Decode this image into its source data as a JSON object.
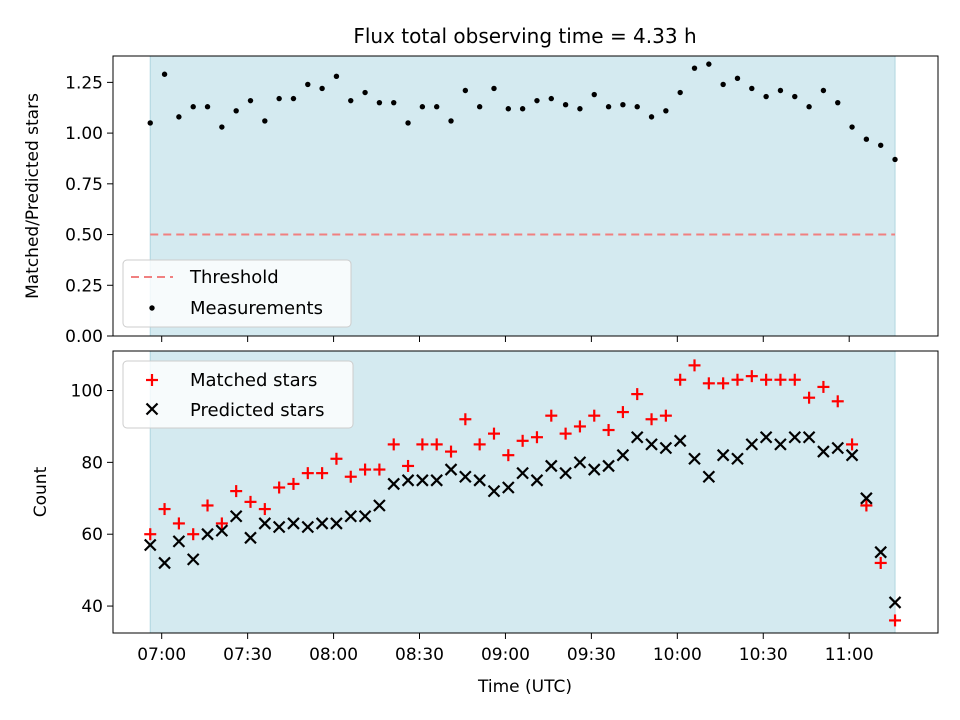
{
  "figure": {
    "title": "Flux total observing time = 4.33 h",
    "xlabel": "Time (UTC)",
    "x_tick_labels": [
      "07:00",
      "07:30",
      "08:00",
      "08:30",
      "09:00",
      "09:30",
      "10:00",
      "10:30",
      "11:00"
    ]
  },
  "colors": {
    "observing_span": "#d4eaf0",
    "threshold": "#f08080",
    "matched": "#ff0000",
    "predicted": "#000000",
    "measurements": "#000000"
  },
  "chart_data": [
    {
      "type": "scatter",
      "panel": "top",
      "ylabel": "Matched/Predicted stars",
      "ylim": [
        0.0,
        1.38
      ],
      "yticks": [
        0.0,
        0.25,
        0.5,
        0.75,
        1.0,
        1.25
      ],
      "x_unit": "time (UTC)",
      "xlim": [
        "06:43",
        "11:31"
      ],
      "observing_span": [
        "06:56",
        "11:16"
      ],
      "threshold": {
        "name": "Threshold",
        "value": 0.5,
        "style": "dashed",
        "x": [
          "06:56",
          "11:16"
        ]
      },
      "legend": {
        "location": "lower-left",
        "entries": [
          "Threshold",
          "Measurements"
        ]
      },
      "series": [
        {
          "name": "Measurements",
          "marker": "dot",
          "x": [
            "06:56",
            "07:01",
            "07:06",
            "07:11",
            "07:16",
            "07:21",
            "07:26",
            "07:31",
            "07:36",
            "07:41",
            "07:46",
            "07:51",
            "07:56",
            "08:01",
            "08:06",
            "08:11",
            "08:16",
            "08:21",
            "08:26",
            "08:31",
            "08:36",
            "08:41",
            "08:46",
            "08:51",
            "08:56",
            "09:01",
            "09:06",
            "09:11",
            "09:16",
            "09:21",
            "09:26",
            "09:31",
            "09:36",
            "09:41",
            "09:46",
            "09:51",
            "09:56",
            "10:01",
            "10:06",
            "10:11",
            "10:16",
            "10:21",
            "10:26",
            "10:31",
            "10:36",
            "10:41",
            "10:46",
            "10:51",
            "10:56",
            "11:01",
            "11:06",
            "11:11",
            "11:16"
          ],
          "y": [
            1.05,
            1.29,
            1.08,
            1.13,
            1.13,
            1.03,
            1.11,
            1.16,
            1.06,
            1.17,
            1.17,
            1.24,
            1.22,
            1.28,
            1.16,
            1.2,
            1.15,
            1.15,
            1.05,
            1.13,
            1.13,
            1.06,
            1.21,
            1.13,
            1.22,
            1.12,
            1.12,
            1.16,
            1.17,
            1.14,
            1.12,
            1.19,
            1.13,
            1.14,
            1.13,
            1.08,
            1.11,
            1.2,
            1.32,
            1.34,
            1.24,
            1.27,
            1.22,
            1.18,
            1.21,
            1.18,
            1.13,
            1.21,
            1.15,
            1.03,
            0.97,
            0.94,
            0.87
          ]
        }
      ]
    },
    {
      "type": "scatter",
      "panel": "bottom",
      "ylabel": "Count",
      "ylim": [
        32.5,
        111
      ],
      "yticks": [
        40,
        60,
        80,
        100
      ],
      "x_unit": "time (UTC)",
      "xlim": [
        "06:43",
        "11:31"
      ],
      "observing_span": [
        "06:56",
        "11:16"
      ],
      "legend": {
        "location": "top-left",
        "entries": [
          "Matched stars",
          "Predicted stars"
        ]
      },
      "x": [
        "06:56",
        "07:01",
        "07:06",
        "07:11",
        "07:16",
        "07:21",
        "07:26",
        "07:31",
        "07:36",
        "07:41",
        "07:46",
        "07:51",
        "07:56",
        "08:01",
        "08:06",
        "08:11",
        "08:16",
        "08:21",
        "08:26",
        "08:31",
        "08:36",
        "08:41",
        "08:46",
        "08:51",
        "08:56",
        "09:01",
        "09:06",
        "09:11",
        "09:16",
        "09:21",
        "09:26",
        "09:31",
        "09:36",
        "09:41",
        "09:46",
        "09:51",
        "09:56",
        "10:01",
        "10:06",
        "10:11",
        "10:16",
        "10:21",
        "10:26",
        "10:31",
        "10:36",
        "10:41",
        "10:46",
        "10:51",
        "10:56",
        "11:01",
        "11:06",
        "11:11",
        "11:16"
      ],
      "series": [
        {
          "name": "Matched stars",
          "marker": "plus",
          "values": [
            60,
            67,
            63,
            60,
            68,
            63,
            72,
            69,
            67,
            73,
            74,
            77,
            77,
            81,
            76,
            78,
            78,
            85,
            79,
            85,
            85,
            83,
            92,
            85,
            88,
            82,
            86,
            87,
            93,
            88,
            90,
            93,
            89,
            94,
            99,
            92,
            93,
            103,
            107,
            102,
            102,
            103,
            104,
            103,
            103,
            103,
            98,
            101,
            97,
            85,
            68,
            52,
            36
          ]
        },
        {
          "name": "Predicted stars",
          "marker": "x",
          "values": [
            57,
            52,
            58,
            53,
            60,
            61,
            65,
            59,
            63,
            62,
            63,
            62,
            63,
            63,
            65,
            65,
            68,
            74,
            75,
            75,
            75,
            78,
            76,
            75,
            72,
            73,
            77,
            75,
            79,
            77,
            80,
            78,
            79,
            82,
            87,
            85,
            84,
            86,
            81,
            76,
            82,
            81,
            85,
            87,
            85,
            87,
            87,
            83,
            84,
            82,
            70,
            55,
            41
          ]
        }
      ]
    }
  ]
}
